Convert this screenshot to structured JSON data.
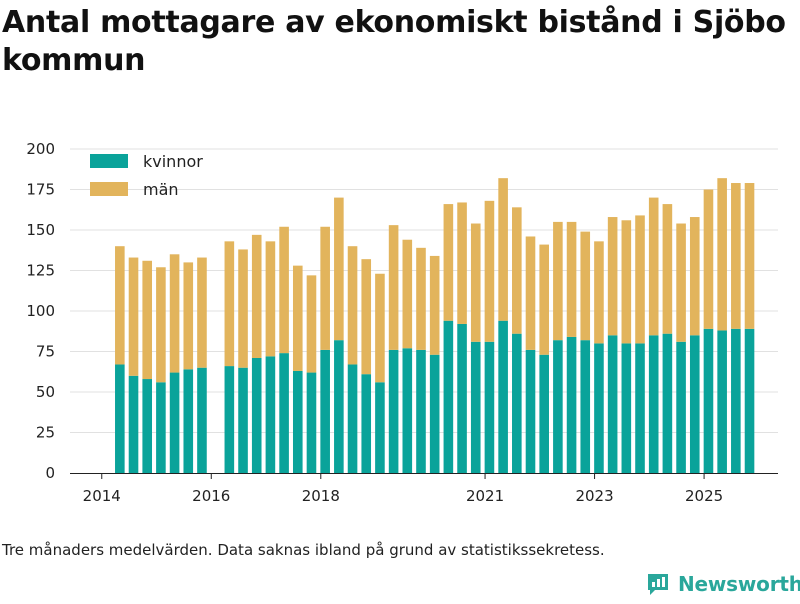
{
  "title": "Antal mottagare av ekonomiskt bistånd i Sjöbo kommun",
  "footnote": "Tre månaders medelvärden. Data saknas ibland på grund av statistikssekretess.",
  "brand": {
    "name": "Newsworthy"
  },
  "colors": {
    "kvinnor": "#0aa39a",
    "man": "#e2b45c",
    "grid": "#e1e1e1",
    "axis": "#222222",
    "text": "#222222",
    "brand": "#2aa79b"
  },
  "chart_data": {
    "type": "bar",
    "stacked": true,
    "title": "Antal mottagare av ekonomiskt bistånd i Sjöbo kommun",
    "xlabel": "",
    "ylabel": "",
    "ylim": [
      0,
      200
    ],
    "yticks": [
      0,
      25,
      50,
      75,
      100,
      125,
      150,
      175,
      200
    ],
    "xlim": [
      2013.42,
      2026.35
    ],
    "xticks": [
      {
        "value": 2014,
        "label": "2014"
      },
      {
        "value": 2016,
        "label": "2016"
      },
      {
        "value": 2018,
        "label": "2018"
      },
      {
        "value": 2021,
        "label": "2021"
      },
      {
        "value": 2023,
        "label": "2023"
      },
      {
        "value": 2025,
        "label": "2025"
      }
    ],
    "legend": {
      "position": "top-left",
      "entries": [
        "kvinnor",
        "män"
      ]
    },
    "x": [
      2014.33,
      2014.58,
      2014.83,
      2015.08,
      2015.33,
      2015.58,
      2015.83,
      2016.33,
      2016.58,
      2016.83,
      2017.08,
      2017.33,
      2017.58,
      2017.83,
      2018.08,
      2018.33,
      2018.58,
      2018.83,
      2019.08,
      2019.33,
      2019.58,
      2019.83,
      2020.08,
      2020.33,
      2020.58,
      2020.83,
      2021.08,
      2021.33,
      2021.58,
      2021.83,
      2022.08,
      2022.33,
      2022.58,
      2022.83,
      2023.08,
      2023.33,
      2023.58,
      2023.83,
      2024.08,
      2024.33,
      2024.58,
      2024.83,
      2025.08,
      2025.33,
      2025.58,
      2025.83
    ],
    "series": [
      {
        "name": "kvinnor",
        "values": [
          67,
          60,
          58,
          56,
          62,
          64,
          65,
          66,
          65,
          71,
          72,
          74,
          63,
          62,
          76,
          82,
          67,
          61,
          56,
          76,
          77,
          76,
          73,
          94,
          92,
          81,
          81,
          94,
          86,
          76,
          73,
          82,
          84,
          82,
          80,
          85,
          80,
          80,
          85,
          86,
          81,
          85,
          89,
          88,
          89,
          89
        ]
      },
      {
        "name": "män",
        "values": [
          73,
          73,
          73,
          71,
          73,
          66,
          68,
          77,
          73,
          76,
          71,
          78,
          65,
          60,
          76,
          88,
          73,
          71,
          67,
          77,
          67,
          63,
          61,
          72,
          75,
          73,
          87,
          88,
          78,
          70,
          68,
          73,
          71,
          67,
          63,
          73,
          76,
          79,
          85,
          80,
          73,
          73,
          86,
          94,
          90,
          90
        ]
      }
    ]
  }
}
